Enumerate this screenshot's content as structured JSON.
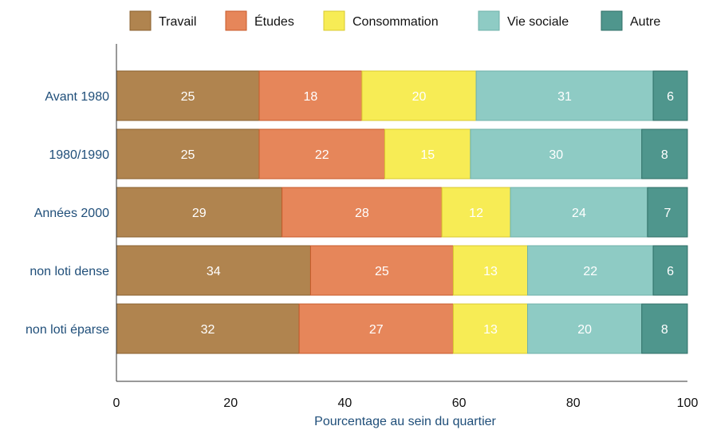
{
  "chart_data": {
    "type": "bar",
    "orientation": "horizontal",
    "stacked": true,
    "categories": [
      "Avant 1980",
      "1980/1990",
      "Années 2000",
      "non loti dense",
      "non loti éparse"
    ],
    "series": [
      {
        "name": "Travail",
        "values": [
          25,
          25,
          29,
          34,
          32
        ],
        "labels": [
          "25",
          "25",
          "29",
          "34",
          "32"
        ],
        "color": "#b0844f",
        "stroke": "#8a5f2c"
      },
      {
        "name": "Études",
        "values": [
          18,
          22,
          28,
          25,
          27
        ],
        "labels": [
          "18",
          "22",
          "28",
          "25",
          "27"
        ],
        "color": "#e6865a",
        "stroke": "#c85a2a"
      },
      {
        "name": "Consommation",
        "values": [
          20,
          15,
          12,
          13,
          13
        ],
        "labels": [
          "20",
          "15",
          "12",
          "13",
          "13"
        ],
        "color": "#f7ec55",
        "stroke": "#d9c92e"
      },
      {
        "name": "Vie sociale",
        "values": [
          31,
          30,
          24,
          22,
          20
        ],
        "labels": [
          "31",
          "30",
          "24",
          "22",
          "20"
        ],
        "color": "#8ecbc4",
        "stroke": "#6fb2aa"
      },
      {
        "name": "Autre",
        "values": [
          6,
          8,
          7,
          6,
          8
        ],
        "labels": [
          "6",
          "8",
          "7",
          "6",
          "8"
        ],
        "color": "#4f968d",
        "stroke": "#2f6f67"
      }
    ],
    "xlabel": "Pourcentage au sein du quartier",
    "ylabel": "",
    "xlim": [
      0,
      100
    ],
    "xticks": [
      "0",
      "20",
      "40",
      "60",
      "80",
      "100"
    ],
    "grid": false,
    "legend": "top"
  }
}
